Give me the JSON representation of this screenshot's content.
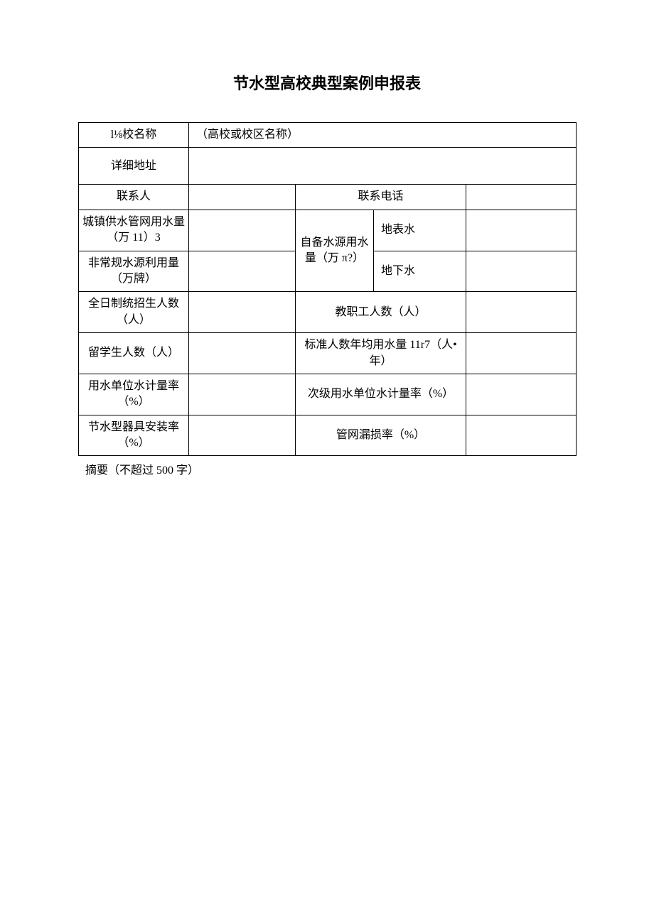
{
  "title": "节水型高校典型案例申报表",
  "table": {
    "row1": {
      "label": "l⅛校名称",
      "value": "（高校或校区名称）"
    },
    "row2": {
      "label": "详细地址"
    },
    "row3": {
      "label1": "联系人",
      "label2": "联系电话"
    },
    "row4": {
      "label1": "城镇供水管网用水量（万 11）3",
      "label2_merged": "自备水源用水量（万 π?）",
      "label3": "地表水"
    },
    "row5": {
      "label1": "非常规水源利用量（万牌）",
      "label3": "地下水"
    },
    "row6": {
      "label1": "全日制统招生人数（人）",
      "label2": "教职工人数（人）"
    },
    "row7": {
      "label1": "留学生人数（人）",
      "label2": "标准人数年均用水量 11r7（人•年）"
    },
    "row8": {
      "label1": "用水单位水计量率（%）",
      "label2": "次级用水单位水计量率（%）"
    },
    "row9": {
      "label1": "节水型器具安装率（%）",
      "label2": "管网漏损率（%）"
    }
  },
  "footnote": "摘要（不超过 500 字）",
  "colors": {
    "border": "#000000",
    "background": "#ffffff",
    "text": "#000000"
  },
  "fonts": {
    "title_size": 22,
    "body_size": 16,
    "title_family": "SimHei",
    "body_family": "SimSun"
  }
}
